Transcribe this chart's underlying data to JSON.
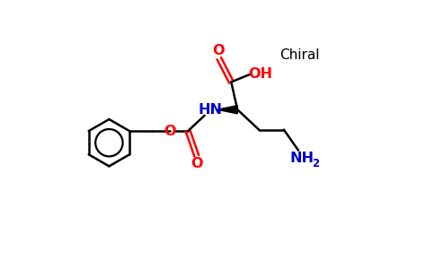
{
  "bg_color": "#ffffff",
  "bond_color": "#000000",
  "o_color": "#ff0000",
  "n_color": "#0000ccff",
  "text_color": "#000000",
  "chiral_label": "Chiral",
  "oh_label": "OH",
  "nh_label": "HN",
  "o_label": "O",
  "nh2_label": "NH",
  "nh2_sub": "2",
  "line_width": 1.8,
  "figsize": [
    4.84,
    3.0
  ],
  "dpi": 100,
  "xlim": [
    0,
    9.68
  ],
  "ylim": [
    0,
    6.0
  ]
}
